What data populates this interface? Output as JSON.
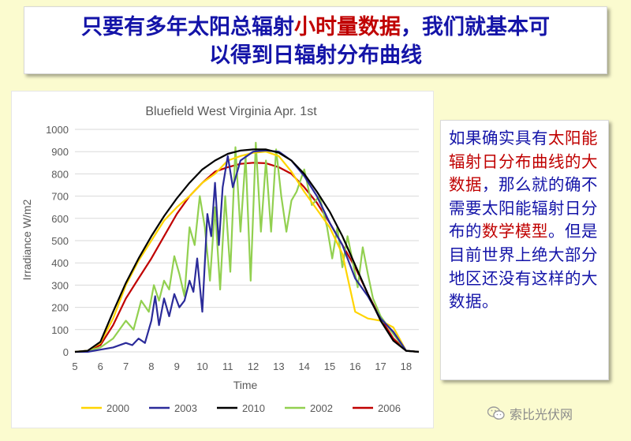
{
  "slide_title": {
    "line1_part1": "只要有多年太阳总辐射",
    "line1_highlight": "小时量数据",
    "line1_part2": "，我们就基本可",
    "line2": "以得到日辐射分布曲线"
  },
  "side_text": {
    "p1": "如果确实具有",
    "h1": "太阳能辐射日分布曲线的大数据",
    "p2": "，那么就的确不需要太阳能辐射日分布的",
    "h2": "数学模型",
    "p3": "。但是目前世界上绝大部分地区还没有这样的大数据。"
  },
  "watermark": {
    "text": "索比光伏网",
    "icon": "wechat-icon"
  },
  "colors": {
    "title_text": "#1414a8",
    "highlight_text": "#c00000",
    "background": "#fbfbcf"
  },
  "chart_data": {
    "type": "line",
    "title": "Bluefield West Virginia Apr. 1st",
    "xlabel": "Time",
    "ylabel": "Irradiance W/m2",
    "xlim": [
      5,
      18.5
    ],
    "ylim": [
      0,
      1000
    ],
    "x_ticks": [
      "5",
      "6",
      "7",
      "8",
      "9",
      "10",
      "11",
      "12",
      "13",
      "14",
      "15",
      "16",
      "17",
      "18"
    ],
    "y_ticks": [
      "0",
      "100",
      "200",
      "300",
      "400",
      "500",
      "600",
      "700",
      "800",
      "900",
      "1000"
    ],
    "grid": true,
    "legend_position": "bottom",
    "series": [
      {
        "name": "2000",
        "color": "#ffd400",
        "x": [
          5.0,
          5.5,
          6.0,
          6.5,
          7.0,
          7.5,
          8.0,
          8.5,
          9.0,
          9.5,
          10.0,
          10.5,
          11.0,
          11.5,
          12.0,
          12.5,
          13.0,
          13.5,
          14.0,
          14.5,
          15.0,
          15.5,
          16.0,
          16.5,
          17.0,
          17.5,
          18.0,
          18.5
        ],
        "y": [
          0,
          5,
          40,
          150,
          300,
          410,
          500,
          590,
          650,
          700,
          760,
          800,
          860,
          880,
          895,
          900,
          880,
          810,
          720,
          640,
          560,
          440,
          180,
          150,
          140,
          110,
          5,
          0
        ]
      },
      {
        "name": "2003",
        "color": "#2b2b9a",
        "x": [
          5.0,
          5.5,
          6.0,
          6.5,
          7.0,
          7.25,
          7.5,
          7.75,
          8.0,
          8.15,
          8.3,
          8.5,
          8.7,
          8.9,
          9.1,
          9.3,
          9.5,
          9.65,
          9.8,
          10.0,
          10.2,
          10.35,
          10.5,
          10.65,
          10.8,
          11.0,
          11.2,
          11.5,
          12.0,
          12.5,
          13.0,
          13.5,
          14.0,
          14.5,
          15.0,
          15.5,
          16.0,
          16.5,
          17.0,
          17.5,
          18.0,
          18.5
        ],
        "y": [
          0,
          0,
          10,
          20,
          40,
          30,
          60,
          40,
          140,
          250,
          120,
          240,
          160,
          260,
          200,
          230,
          320,
          270,
          420,
          180,
          620,
          520,
          760,
          480,
          740,
          880,
          740,
          860,
          900,
          905,
          900,
          860,
          790,
          700,
          580,
          480,
          330,
          250,
          150,
          90,
          5,
          0
        ]
      },
      {
        "name": "2010",
        "color": "#000000",
        "x": [
          5.0,
          5.5,
          6.0,
          6.5,
          7.0,
          7.5,
          8.0,
          8.5,
          9.0,
          9.5,
          10.0,
          10.5,
          11.0,
          11.5,
          12.0,
          12.5,
          13.0,
          13.5,
          14.0,
          14.5,
          15.0,
          15.5,
          16.0,
          16.5,
          17.0,
          17.5,
          18.0,
          18.5
        ],
        "y": [
          0,
          5,
          45,
          180,
          310,
          420,
          520,
          610,
          690,
          760,
          820,
          860,
          890,
          905,
          910,
          910,
          895,
          860,
          800,
          720,
          630,
          520,
          390,
          260,
          140,
          50,
          5,
          0
        ]
      },
      {
        "name": "2002",
        "color": "#92d050",
        "x": [
          5.0,
          5.5,
          6.0,
          6.5,
          7.0,
          7.3,
          7.6,
          7.9,
          8.1,
          8.3,
          8.5,
          8.7,
          8.9,
          9.1,
          9.3,
          9.5,
          9.7,
          9.9,
          10.1,
          10.3,
          10.5,
          10.7,
          10.9,
          11.1,
          11.3,
          11.5,
          11.7,
          11.9,
          12.1,
          12.3,
          12.5,
          12.7,
          12.9,
          13.1,
          13.3,
          13.5,
          13.7,
          14.0,
          14.3,
          14.6,
          14.9,
          15.1,
          15.3,
          15.5,
          15.7,
          15.9,
          16.1,
          16.3,
          16.5,
          16.7,
          17.0,
          17.5,
          18.0,
          18.5
        ],
        "y": [
          0,
          5,
          20,
          60,
          140,
          100,
          230,
          180,
          300,
          230,
          320,
          280,
          430,
          350,
          250,
          560,
          480,
          700,
          560,
          320,
          650,
          280,
          700,
          360,
          920,
          540,
          880,
          320,
          940,
          540,
          860,
          540,
          910,
          700,
          540,
          680,
          720,
          820,
          660,
          700,
          560,
          420,
          560,
          380,
          520,
          410,
          290,
          470,
          350,
          240,
          160,
          80,
          5,
          0
        ]
      },
      {
        "name": "2006",
        "color": "#c00000",
        "x": [
          5.0,
          5.5,
          6.0,
          6.5,
          7.0,
          7.5,
          8.0,
          8.5,
          9.0,
          9.5,
          10.0,
          10.5,
          11.0,
          11.5,
          12.0,
          12.5,
          13.0,
          13.5,
          14.0,
          14.5,
          15.0,
          15.5,
          16.0,
          16.5,
          17.0,
          17.5,
          18.0,
          18.5
        ],
        "y": [
          0,
          5,
          30,
          120,
          240,
          330,
          420,
          520,
          620,
          700,
          760,
          810,
          830,
          845,
          850,
          848,
          830,
          800,
          740,
          670,
          580,
          480,
          380,
          260,
          150,
          60,
          5,
          0
        ]
      }
    ]
  }
}
